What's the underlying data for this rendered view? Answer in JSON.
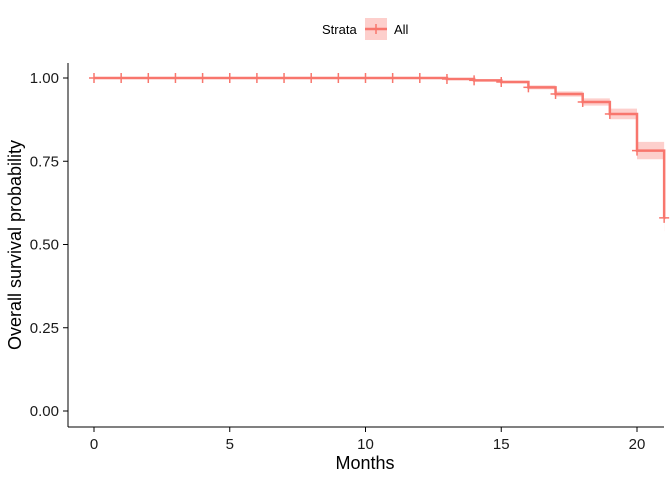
{
  "chart_data": {
    "type": "line",
    "subtype": "kaplan-meier-step",
    "xlabel": "Months",
    "ylabel": "Overall survival probability",
    "xlim": [
      -1,
      21
    ],
    "ylim": [
      -0.05,
      1.05
    ],
    "x_ticks": [
      0,
      5,
      10,
      15,
      20
    ],
    "y_ticks": [
      0.0,
      0.25,
      0.5,
      0.75,
      1.0
    ],
    "x_tick_labels": [
      "0",
      "5",
      "10",
      "15",
      "20"
    ],
    "y_tick_labels": [
      "0.00",
      "0.25",
      "0.50",
      "0.75",
      "1.00"
    ],
    "grid": false,
    "legend": {
      "title": "Strata",
      "position": "top",
      "entries": [
        "All"
      ]
    },
    "series": [
      {
        "name": "All",
        "color": "#F8766D",
        "steps": [
          {
            "x": 0,
            "y": 1.0
          },
          {
            "x": 13,
            "y": 0.997
          },
          {
            "x": 14,
            "y": 0.993
          },
          {
            "x": 15,
            "y": 0.988
          },
          {
            "x": 16,
            "y": 0.972
          },
          {
            "x": 17,
            "y": 0.952
          },
          {
            "x": 18,
            "y": 0.928
          },
          {
            "x": 19,
            "y": 0.892
          },
          {
            "x": 20,
            "y": 0.782
          },
          {
            "x": 21,
            "y": 0.58
          }
        ],
        "ci_lower": [
          1.0,
          0.995,
          0.99,
          0.984,
          0.966,
          0.944,
          0.917,
          0.876,
          0.756,
          0.54
        ],
        "ci_upper": [
          1.0,
          0.999,
          0.996,
          0.992,
          0.978,
          0.96,
          0.939,
          0.908,
          0.808,
          0.62
        ],
        "censor_marks": [
          {
            "x": 0,
            "y": 1.0
          },
          {
            "x": 1,
            "y": 1.0
          },
          {
            "x": 2,
            "y": 1.0
          },
          {
            "x": 3,
            "y": 1.0
          },
          {
            "x": 4,
            "y": 1.0
          },
          {
            "x": 5,
            "y": 1.0
          },
          {
            "x": 6,
            "y": 1.0
          },
          {
            "x": 7,
            "y": 1.0
          },
          {
            "x": 8,
            "y": 1.0
          },
          {
            "x": 9,
            "y": 1.0
          },
          {
            "x": 10,
            "y": 1.0
          },
          {
            "x": 11,
            "y": 1.0
          },
          {
            "x": 12,
            "y": 1.0
          },
          {
            "x": 13,
            "y": 0.997
          },
          {
            "x": 14,
            "y": 0.993
          },
          {
            "x": 15,
            "y": 0.988
          },
          {
            "x": 16,
            "y": 0.972
          },
          {
            "x": 17,
            "y": 0.952
          },
          {
            "x": 18,
            "y": 0.928
          },
          {
            "x": 19,
            "y": 0.892
          },
          {
            "x": 20,
            "y": 0.782
          },
          {
            "x": 21,
            "y": 0.58
          }
        ]
      }
    ]
  }
}
